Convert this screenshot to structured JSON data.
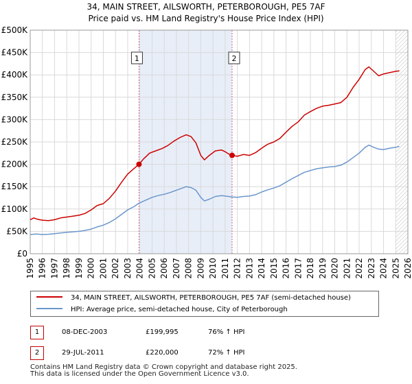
{
  "colors": {
    "property": "#cc0000",
    "hpi": "#6a96cc",
    "shade": "#e8eef8",
    "marker_line": "#d06080",
    "grid": "#d9d9d9"
  },
  "chart_data": {
    "type": "line",
    "title": "34, MAIN STREET, AILSWORTH, PETERBOROUGH, PE5 7AF",
    "subtitle": "Price paid vs. HM Land Registry's House Price Index (HPI)",
    "xlim": [
      1995,
      2026
    ],
    "ylim": [
      0,
      500000
    ],
    "x_ticks": [
      "1995",
      "1996",
      "1997",
      "1998",
      "1999",
      "2000",
      "2001",
      "2002",
      "2003",
      "2004",
      "2005",
      "2006",
      "2007",
      "2008",
      "2009",
      "2010",
      "2011",
      "2012",
      "2013",
      "2014",
      "2015",
      "2016",
      "2017",
      "2018",
      "2019",
      "2020",
      "2021",
      "2022",
      "2023",
      "2024",
      "2025",
      "2026"
    ],
    "y_ticks": [
      {
        "value": 0,
        "label": "£0"
      },
      {
        "value": 50000,
        "label": "£50K"
      },
      {
        "value": 100000,
        "label": "£100K"
      },
      {
        "value": 150000,
        "label": "£150K"
      },
      {
        "value": 200000,
        "label": "£200K"
      },
      {
        "value": 250000,
        "label": "£250K"
      },
      {
        "value": 300000,
        "label": "£300K"
      },
      {
        "value": 350000,
        "label": "£350K"
      },
      {
        "value": 400000,
        "label": "£400K"
      },
      {
        "value": 450000,
        "label": "£450K"
      },
      {
        "value": 500000,
        "label": "£500K"
      }
    ],
    "shaded_range": [
      2003.93,
      2011.57
    ],
    "future_hatch_start": 2025.0,
    "series": [
      {
        "name": "34, MAIN STREET, AILSWORTH, PETERBOROUGH, PE5 7AF (semi-detached house)",
        "color_key": "property",
        "points": [
          [
            1995.0,
            76000
          ],
          [
            1995.3,
            80000
          ],
          [
            1995.6,
            77000
          ],
          [
            1996.0,
            75000
          ],
          [
            1996.5,
            74000
          ],
          [
            1997.0,
            76000
          ],
          [
            1997.5,
            80000
          ],
          [
            1998.0,
            82000
          ],
          [
            1998.5,
            84000
          ],
          [
            1999.0,
            86000
          ],
          [
            1999.5,
            90000
          ],
          [
            2000.0,
            98000
          ],
          [
            2000.5,
            108000
          ],
          [
            2001.0,
            112000
          ],
          [
            2001.5,
            124000
          ],
          [
            2002.0,
            140000
          ],
          [
            2002.5,
            160000
          ],
          [
            2003.0,
            178000
          ],
          [
            2003.5,
            190000
          ],
          [
            2003.93,
            199995
          ],
          [
            2004.3,
            212000
          ],
          [
            2004.8,
            225000
          ],
          [
            2005.3,
            230000
          ],
          [
            2005.8,
            235000
          ],
          [
            2006.3,
            242000
          ],
          [
            2006.8,
            252000
          ],
          [
            2007.3,
            260000
          ],
          [
            2007.8,
            266000
          ],
          [
            2008.2,
            262000
          ],
          [
            2008.6,
            248000
          ],
          [
            2009.0,
            220000
          ],
          [
            2009.3,
            210000
          ],
          [
            2009.7,
            220000
          ],
          [
            2010.2,
            230000
          ],
          [
            2010.7,
            232000
          ],
          [
            2011.0,
            228000
          ],
          [
            2011.3,
            223000
          ],
          [
            2011.57,
            220000
          ],
          [
            2012.0,
            218000
          ],
          [
            2012.5,
            222000
          ],
          [
            2013.0,
            220000
          ],
          [
            2013.5,
            226000
          ],
          [
            2014.0,
            236000
          ],
          [
            2014.5,
            245000
          ],
          [
            2015.0,
            250000
          ],
          [
            2015.5,
            258000
          ],
          [
            2016.0,
            272000
          ],
          [
            2016.5,
            285000
          ],
          [
            2017.0,
            295000
          ],
          [
            2017.5,
            310000
          ],
          [
            2018.0,
            318000
          ],
          [
            2018.5,
            325000
          ],
          [
            2019.0,
            330000
          ],
          [
            2019.5,
            332000
          ],
          [
            2020.0,
            335000
          ],
          [
            2020.5,
            338000
          ],
          [
            2021.0,
            350000
          ],
          [
            2021.5,
            372000
          ],
          [
            2022.0,
            390000
          ],
          [
            2022.5,
            412000
          ],
          [
            2022.8,
            418000
          ],
          [
            2023.2,
            408000
          ],
          [
            2023.6,
            398000
          ],
          [
            2024.0,
            402000
          ],
          [
            2024.5,
            405000
          ],
          [
            2025.0,
            408000
          ],
          [
            2025.3,
            409000
          ]
        ]
      },
      {
        "name": "HPI: Average price, semi-detached house, City of Peterborough",
        "color_key": "hpi",
        "points": [
          [
            1995.0,
            43000
          ],
          [
            1995.5,
            44000
          ],
          [
            1996.0,
            43000
          ],
          [
            1996.5,
            43500
          ],
          [
            1997.0,
            45000
          ],
          [
            1997.5,
            46500
          ],
          [
            1998.0,
            48000
          ],
          [
            1998.5,
            49000
          ],
          [
            1999.0,
            50000
          ],
          [
            1999.5,
            52000
          ],
          [
            2000.0,
            55000
          ],
          [
            2000.5,
            60000
          ],
          [
            2001.0,
            64000
          ],
          [
            2001.5,
            70000
          ],
          [
            2002.0,
            78000
          ],
          [
            2002.5,
            88000
          ],
          [
            2003.0,
            98000
          ],
          [
            2003.5,
            105000
          ],
          [
            2003.93,
            113000
          ],
          [
            2004.5,
            120000
          ],
          [
            2005.0,
            126000
          ],
          [
            2005.5,
            130000
          ],
          [
            2006.0,
            133000
          ],
          [
            2006.5,
            137000
          ],
          [
            2007.0,
            142000
          ],
          [
            2007.5,
            147000
          ],
          [
            2007.8,
            150000
          ],
          [
            2008.2,
            148000
          ],
          [
            2008.6,
            142000
          ],
          [
            2009.0,
            126000
          ],
          [
            2009.3,
            118000
          ],
          [
            2009.7,
            122000
          ],
          [
            2010.2,
            128000
          ],
          [
            2010.7,
            130000
          ],
          [
            2011.0,
            129000
          ],
          [
            2011.57,
            127000
          ],
          [
            2012.0,
            126000
          ],
          [
            2012.5,
            128000
          ],
          [
            2013.0,
            129000
          ],
          [
            2013.5,
            132000
          ],
          [
            2014.0,
            138000
          ],
          [
            2014.5,
            143000
          ],
          [
            2015.0,
            147000
          ],
          [
            2015.5,
            152000
          ],
          [
            2016.0,
            160000
          ],
          [
            2016.5,
            168000
          ],
          [
            2017.0,
            175000
          ],
          [
            2017.5,
            182000
          ],
          [
            2018.0,
            186000
          ],
          [
            2018.5,
            190000
          ],
          [
            2019.0,
            192000
          ],
          [
            2019.5,
            194000
          ],
          [
            2020.0,
            195000
          ],
          [
            2020.5,
            198000
          ],
          [
            2021.0,
            205000
          ],
          [
            2021.5,
            215000
          ],
          [
            2022.0,
            225000
          ],
          [
            2022.5,
            238000
          ],
          [
            2022.8,
            243000
          ],
          [
            2023.2,
            238000
          ],
          [
            2023.6,
            234000
          ],
          [
            2024.0,
            233000
          ],
          [
            2024.5,
            236000
          ],
          [
            2025.0,
            238000
          ],
          [
            2025.3,
            240000
          ]
        ]
      }
    ],
    "sales": [
      {
        "id": "1",
        "x": 2003.93,
        "value": 199995
      },
      {
        "id": "2",
        "x": 2011.57,
        "value": 220000
      }
    ]
  },
  "legend": {
    "property_label": "34, MAIN STREET, AILSWORTH, PETERBOROUGH, PE5 7AF (semi-detached house)",
    "hpi_label": "HPI: Average price, semi-detached house, City of Peterborough"
  },
  "sales_table": [
    {
      "id": "1",
      "date": "08-DEC-2003",
      "price": "£199,995",
      "hpi": "76% ↑ HPI"
    },
    {
      "id": "2",
      "date": "29-JUL-2011",
      "price": "£220,000",
      "hpi": "72% ↑ HPI"
    }
  ],
  "footer": {
    "line1": "Contains HM Land Registry data © Crown copyright and database right 2025.",
    "line2": "This data is licensed under the Open Government Licence v3.0."
  }
}
